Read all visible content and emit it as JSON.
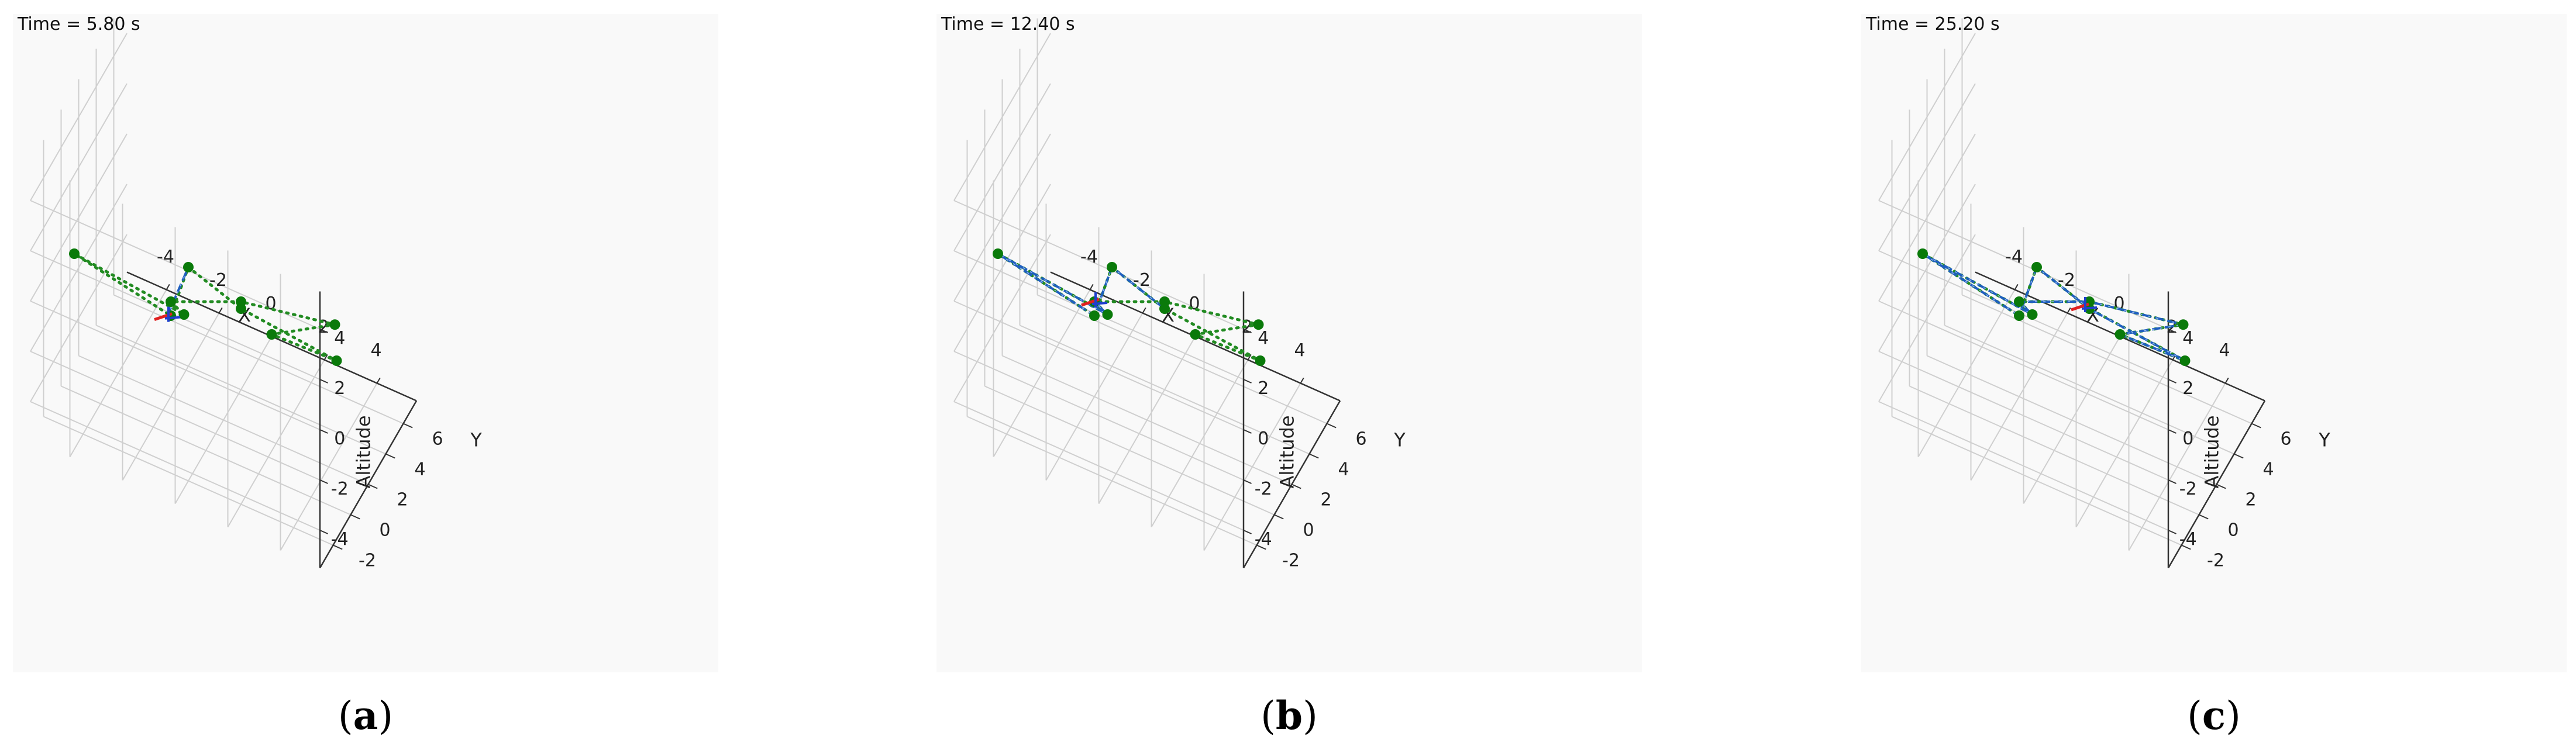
{
  "chart_data": [
    {
      "type": "scatter3d",
      "time_label": "Time = 5.80 s",
      "caption": "a",
      "xlabel": "X",
      "ylabel": "Y",
      "zlabel": "Altitude",
      "xlim": [
        -5.5,
        5.5
      ],
      "ylim": [
        -3.5,
        7.5
      ],
      "zlim": [
        -5.5,
        5.5
      ],
      "x_ticks": [
        "-4",
        "-2",
        "0",
        "2",
        "4"
      ],
      "y_ticks": [
        "-2",
        "0",
        "2",
        "4",
        "6"
      ],
      "z_ticks": [
        "4",
        "2",
        "0",
        "-2",
        "-4"
      ],
      "waypoints": [
        [
          0,
          -2,
          3
        ],
        [
          1,
          1,
          0
        ],
        [
          4.8,
          0.5,
          0
        ],
        [
          1.5,
          3,
          -2
        ],
        [
          2.8,
          6.3,
          -3
        ],
        [
          0,
          4,
          -2
        ],
        [
          -3,
          5,
          -4
        ],
        [
          -1.5,
          2,
          -2
        ],
        [
          -5,
          0,
          0
        ],
        [
          -1,
          -1,
          0
        ]
      ],
      "planned_path": [
        [
          0,
          -2,
          3
        ],
        [
          1,
          1,
          0
        ],
        [
          4.8,
          0.5,
          0
        ],
        [
          1.5,
          3,
          -2
        ],
        [
          2.8,
          6.3,
          -3
        ],
        [
          0,
          4,
          -2
        ],
        [
          -3,
          5,
          -4
        ],
        [
          -1.5,
          2,
          -2
        ],
        [
          -5,
          0,
          0
        ],
        [
          -1,
          -1,
          0
        ],
        [
          0,
          -2,
          3
        ]
      ],
      "flown_path": [
        [
          -1.1,
          -1.1,
          0
        ],
        [
          0,
          -2,
          3
        ]
      ],
      "vehicle": [
        -1.1,
        -1.1,
        0
      ]
    },
    {
      "type": "scatter3d",
      "time_label": "Time = 12.40 s",
      "caption": "b",
      "xlabel": "X",
      "ylabel": "Y",
      "zlabel": "Altitude",
      "xlim": [
        -5.5,
        5.5
      ],
      "ylim": [
        -3.5,
        7.5
      ],
      "zlim": [
        -5.5,
        5.5
      ],
      "x_ticks": [
        "-4",
        "-2",
        "0",
        "2",
        "4"
      ],
      "y_ticks": [
        "-2",
        "0",
        "2",
        "4",
        "6"
      ],
      "z_ticks": [
        "4",
        "2",
        "0",
        "-2",
        "-4"
      ],
      "waypoints": [
        [
          0,
          -2,
          3
        ],
        [
          1,
          1,
          0
        ],
        [
          4.8,
          0.5,
          0
        ],
        [
          1.5,
          3,
          -2
        ],
        [
          2.8,
          6.3,
          -3
        ],
        [
          0,
          4,
          -2
        ],
        [
          -3,
          5,
          -4
        ],
        [
          -1.5,
          2,
          -2
        ],
        [
          -5,
          0,
          0
        ],
        [
          -1,
          -1,
          0
        ]
      ],
      "planned_path": [
        [
          0,
          -2,
          3
        ],
        [
          1,
          1,
          0
        ],
        [
          4.8,
          0.5,
          0
        ],
        [
          1.5,
          3,
          -2
        ],
        [
          2.8,
          6.3,
          -3
        ],
        [
          0,
          4,
          -2
        ],
        [
          -3,
          5,
          -4
        ],
        [
          -1.5,
          2,
          -2
        ],
        [
          -5,
          0,
          0
        ],
        [
          -1,
          -1,
          0
        ],
        [
          0,
          -2,
          3
        ]
      ],
      "flown_path": [
        [
          1,
          1,
          0
        ],
        [
          0,
          -2,
          3
        ],
        [
          -1,
          -1,
          0
        ],
        [
          -5,
          0,
          0
        ],
        [
          -1.5,
          2,
          -2
        ],
        [
          -3,
          5,
          -4
        ]
      ],
      "vehicle": [
        -3,
        5,
        -4
      ]
    },
    {
      "type": "scatter3d",
      "time_label": "Time = 25.20 s",
      "caption": "c",
      "xlabel": "X",
      "ylabel": "Y",
      "zlabel": "Altitude",
      "xlim": [
        -5.5,
        5.5
      ],
      "ylim": [
        -3.5,
        7.5
      ],
      "zlim": [
        -5.5,
        5.5
      ],
      "x_ticks": [
        "-4",
        "-2",
        "0",
        "2",
        "4"
      ],
      "y_ticks": [
        "-2",
        "0",
        "2",
        "4",
        "6"
      ],
      "z_ticks": [
        "4",
        "2",
        "0",
        "-2",
        "-4"
      ],
      "waypoints": [
        [
          0,
          -2,
          3
        ],
        [
          1,
          1,
          0
        ],
        [
          4.8,
          0.5,
          0
        ],
        [
          1.5,
          3,
          -2
        ],
        [
          2.8,
          6.3,
          -3
        ],
        [
          0,
          4,
          -2
        ],
        [
          -3,
          5,
          -4
        ],
        [
          -1.5,
          2,
          -2
        ],
        [
          -5,
          0,
          0
        ],
        [
          -1,
          -1,
          0
        ]
      ],
      "planned_path": [
        [
          0,
          -2,
          3
        ],
        [
          1,
          1,
          0
        ],
        [
          4.8,
          0.5,
          0
        ],
        [
          1.5,
          3,
          -2
        ],
        [
          2.8,
          6.3,
          -3
        ],
        [
          0,
          4,
          -2
        ],
        [
          -3,
          5,
          -4
        ],
        [
          -1.5,
          2,
          -2
        ],
        [
          -5,
          0,
          0
        ],
        [
          -1,
          -1,
          0
        ],
        [
          0,
          -2,
          3
        ]
      ],
      "flown_path": [
        [
          1,
          1,
          0
        ],
        [
          0,
          -2,
          3
        ],
        [
          -1,
          -1,
          0
        ],
        [
          -5,
          0,
          0
        ],
        [
          -1.5,
          2,
          -2
        ],
        [
          -3,
          5,
          -4
        ],
        [
          0,
          4,
          -2
        ],
        [
          2.8,
          6.3,
          -3
        ],
        [
          1.5,
          3,
          -2
        ],
        [
          4.8,
          0.5,
          0
        ],
        [
          0.9,
          1,
          0
        ]
      ],
      "vehicle": [
        0.8,
        1,
        0
      ]
    }
  ],
  "colors": {
    "planned": "#228b22",
    "flown": "#1f5fbf",
    "waypoint": "#0a7a0a",
    "vehicle": "#e02020",
    "vehicle_axis": "#1f3fcf",
    "grid": "#cfcfcf",
    "panel_bg": "#f9f9f9"
  }
}
